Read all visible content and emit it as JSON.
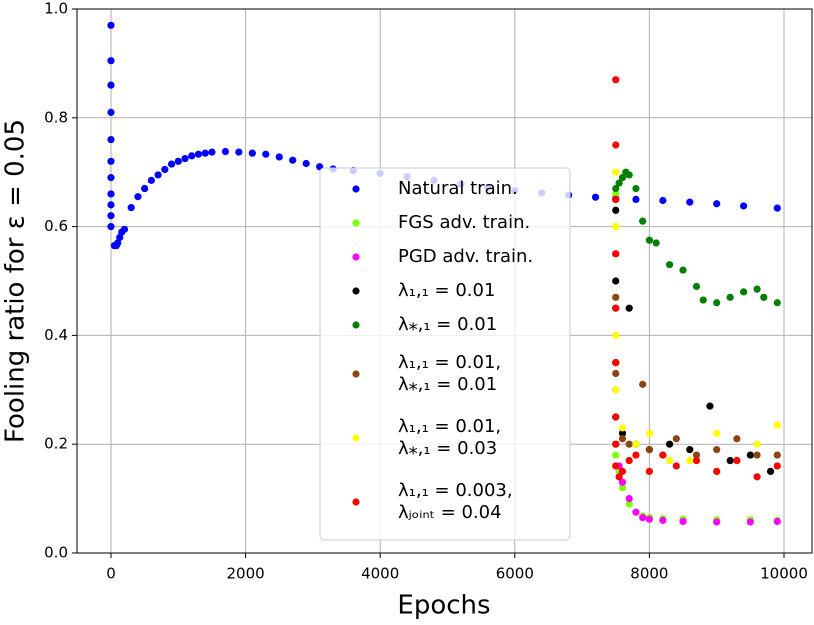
{
  "chart_data": {
    "type": "scatter",
    "xlabel": "Epochs",
    "ylabel": "Fooling ratio for ε = 0.05",
    "xlim": [
      -505,
      10416
    ],
    "ylim": [
      0,
      1
    ],
    "xticks": [
      0,
      2000,
      4000,
      6000,
      8000,
      10000
    ],
    "yticks": [
      {
        "value": 0,
        "label": "0.0"
      },
      0.2,
      0.4,
      0.6,
      0.8,
      {
        "value": 1,
        "label": "1.0"
      }
    ],
    "grid": true,
    "legend": "center",
    "series": [
      {
        "name": "Natural train.",
        "color": "#0000ff",
        "x": [
          0,
          0,
          0,
          0,
          0,
          0,
          0,
          0,
          0,
          0,
          0,
          50,
          80,
          100,
          130,
          160,
          200,
          300,
          400,
          500,
          600,
          700,
          800,
          900,
          1000,
          1100,
          1200,
          1300,
          1400,
          1500,
          1700,
          1900,
          2100,
          2300,
          2500,
          2700,
          2900,
          3100,
          3300,
          3600,
          4000,
          4400,
          4800,
          5200,
          5600,
          6000,
          6400,
          6800,
          7200,
          7500,
          7800,
          8200,
          8600,
          9000,
          9400,
          9900
        ],
        "values": [
          0.97,
          0.905,
          0.86,
          0.81,
          0.76,
          0.72,
          0.69,
          0.66,
          0.64,
          0.62,
          0.6,
          0.565,
          0.565,
          0.57,
          0.58,
          0.59,
          0.595,
          0.635,
          0.655,
          0.67,
          0.685,
          0.695,
          0.705,
          0.715,
          0.72,
          0.725,
          0.73,
          0.733,
          0.735,
          0.737,
          0.738,
          0.737,
          0.735,
          0.733,
          0.728,
          0.722,
          0.716,
          0.71,
          0.706,
          0.703,
          0.698,
          0.692,
          0.685,
          0.678,
          0.672,
          0.666,
          0.662,
          0.658,
          0.654,
          0.652,
          0.65,
          0.648,
          0.645,
          0.642,
          0.638,
          0.634
        ]
      },
      {
        "name": "FGS adv. train.",
        "color": "#80ff00",
        "x": [
          7500,
          7500,
          7500,
          7500,
          7500,
          7500,
          7550,
          7600,
          7700,
          7800,
          7900,
          8000,
          8200,
          8500,
          9000,
          9500,
          9900
        ],
        "values": [
          0.66,
          0.6,
          0.5,
          0.35,
          0.25,
          0.18,
          0.15,
          0.12,
          0.09,
          0.075,
          0.068,
          0.065,
          0.063,
          0.062,
          0.061,
          0.061,
          0.06
        ]
      },
      {
        "name": "PGD adv. train.",
        "color": "#ff00ff",
        "x": [
          7500,
          7500,
          7500,
          7500,
          7500,
          7550,
          7600,
          7700,
          7800,
          7900,
          8000,
          8200,
          8500,
          9000,
          9500,
          9900
        ],
        "values": [
          0.65,
          0.55,
          0.45,
          0.3,
          0.2,
          0.16,
          0.13,
          0.1,
          0.075,
          0.065,
          0.062,
          0.06,
          0.058,
          0.057,
          0.057,
          0.058
        ]
      },
      {
        "name": "λ₁,₁ = 0.01",
        "color": "#000000",
        "x": [
          7500,
          7500,
          7500,
          7500,
          7600,
          7700,
          7800,
          8000,
          8300,
          8600,
          8900,
          9200,
          9500,
          9800
        ],
        "values": [
          0.63,
          0.5,
          0.35,
          0.25,
          0.22,
          0.45,
          0.2,
          0.19,
          0.2,
          0.19,
          0.27,
          0.17,
          0.18,
          0.15
        ]
      },
      {
        "name": "λ⁎,₁ = 0.01",
        "color": "#008000",
        "x": [
          7500,
          7550,
          7600,
          7650,
          7700,
          7800,
          7900,
          8000,
          8100,
          8300,
          8500,
          8700,
          8800,
          9000,
          9200,
          9400,
          9600,
          9700,
          9900
        ],
        "values": [
          0.67,
          0.68,
          0.69,
          0.7,
          0.695,
          0.67,
          0.61,
          0.575,
          0.57,
          0.53,
          0.52,
          0.49,
          0.465,
          0.46,
          0.47,
          0.48,
          0.485,
          0.47,
          0.46
        ]
      },
      {
        "name": "λ₁,₁ = 0.01,\nλ⁎,₁ = 0.01",
        "color": "#8b4513",
        "x": [
          7500,
          7500,
          7500,
          7500,
          7600,
          7700,
          7900,
          8000,
          8200,
          8400,
          8700,
          9000,
          9300,
          9600,
          9900
        ],
        "values": [
          0.65,
          0.47,
          0.33,
          0.25,
          0.21,
          0.2,
          0.31,
          0.19,
          0.18,
          0.21,
          0.18,
          0.19,
          0.21,
          0.18,
          0.18
        ]
      },
      {
        "name": "λ₁,₁ = 0.01,\nλ⁎,₁ = 0.03",
        "color": "#ffff00",
        "x": [
          7500,
          7500,
          7500,
          7500,
          7600,
          7800,
          8000,
          8300,
          8600,
          9000,
          9300,
          9600,
          9900
        ],
        "values": [
          0.7,
          0.6,
          0.4,
          0.3,
          0.23,
          0.2,
          0.22,
          0.17,
          0.17,
          0.22,
          0.17,
          0.2,
          0.235
        ]
      },
      {
        "name": "λ₁,₁ = 0.003,\nλⱼₒᵢₙₜ = 0.04",
        "color": "#ff0000",
        "x": [
          7500,
          7500,
          7500,
          7500,
          7500,
          7500,
          7500,
          7500,
          7500,
          7550,
          7600,
          7700,
          7800,
          8000,
          8200,
          8400,
          8700,
          9000,
          9300,
          9600,
          9900
        ],
        "values": [
          0.87,
          0.75,
          0.65,
          0.55,
          0.45,
          0.35,
          0.25,
          0.2,
          0.16,
          0.14,
          0.15,
          0.17,
          0.18,
          0.15,
          0.18,
          0.16,
          0.17,
          0.15,
          0.17,
          0.14,
          0.16
        ]
      }
    ]
  }
}
